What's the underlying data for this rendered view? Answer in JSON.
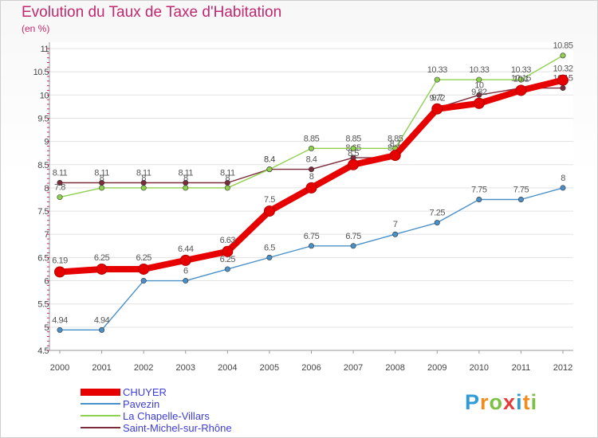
{
  "header": {
    "title": "Evolution du Taux de Taxe d'Habitation",
    "subtitle": "(en %)"
  },
  "brand": {
    "letters": [
      "P",
      "r",
      "o",
      "x",
      "i",
      "t",
      "i"
    ],
    "colors": [
      "#2e9bd6",
      "#f28c1e",
      "#7cc142",
      "#e53b3b",
      "#2e9bd6",
      "#f28c1e",
      "#7cc142"
    ]
  },
  "chart_data": {
    "type": "line",
    "title": "Evolution du Taux de Taxe d'Habitation",
    "subtitle": "(en %)",
    "xlabel": "",
    "ylabel": "",
    "x": [
      "2000",
      "2001",
      "2002",
      "2003",
      "2004",
      "2005",
      "2006",
      "2007",
      "2008",
      "2009",
      "2010",
      "2011",
      "2012"
    ],
    "ylim": [
      4.5,
      11
    ],
    "yticks": [
      "4.5",
      "5",
      "5.5",
      "6",
      "6.5",
      "7",
      "7.5",
      "8",
      "8.5",
      "9",
      "9.5",
      "10",
      "10.5",
      "11"
    ],
    "grid": true,
    "legend_position": "bottom-left",
    "series": [
      {
        "name": "Saint-Michel-sur-Rhône",
        "color": "#7b2b3a",
        "values": [
          8.11,
          8.11,
          8.11,
          8.11,
          8.11,
          8.4,
          8.4,
          8.65,
          8.65,
          9.72,
          10.0,
          10.15,
          10.15
        ],
        "labels": [
          "8.11",
          "8.11",
          "8.11",
          "8.11",
          "8.11",
          "8.4",
          "8.4",
          "8.65",
          "8.65",
          "9.72",
          "10",
          "10.15",
          "10.15"
        ]
      },
      {
        "name": "Pavezin",
        "color": "#4a90c8",
        "values": [
          4.94,
          4.94,
          6.0,
          6.0,
          6.25,
          6.5,
          6.75,
          6.75,
          7.0,
          7.25,
          7.75,
          7.75,
          8.0
        ],
        "labels": [
          "4.94",
          "4.94",
          "6",
          "6",
          "6.25",
          "6.5",
          "6.75",
          "6.75",
          "7",
          "7.25",
          "7.75",
          "7.75",
          "8"
        ]
      },
      {
        "name": "La Chapelle-Villars",
        "color": "#8fd14f",
        "values": [
          7.8,
          8.0,
          8.0,
          8.0,
          8.0,
          8.4,
          8.85,
          8.85,
          8.85,
          10.33,
          10.33,
          10.33,
          10.85
        ],
        "labels": [
          "7.8",
          "8",
          "8",
          "8",
          "8",
          "8.4",
          "8.85",
          "8.85",
          "8.85",
          "10.33",
          "10.33",
          "10.33",
          "10.85"
        ]
      },
      {
        "name": "CHUYER",
        "color": "#e60000",
        "values": [
          6.19,
          6.25,
          6.25,
          6.44,
          6.63,
          7.5,
          8.0,
          8.5,
          8.7,
          9.7,
          9.82,
          10.1,
          10.32
        ],
        "labels": [
          "6.19",
          "6.25",
          "6.25",
          "6.44",
          "6.63",
          "7.5",
          "8",
          "8.5",
          "8.7",
          "9.7",
          "9.82",
          "10.1",
          "10.32"
        ]
      }
    ],
    "legend": [
      {
        "name": "CHUYER",
        "color": "#e60000"
      },
      {
        "name": "Pavezin",
        "color": "#4a90c8"
      },
      {
        "name": "La Chapelle-Villars",
        "color": "#8fd14f"
      },
      {
        "name": "Saint-Michel-sur-Rhône",
        "color": "#7b2b3a"
      }
    ]
  }
}
